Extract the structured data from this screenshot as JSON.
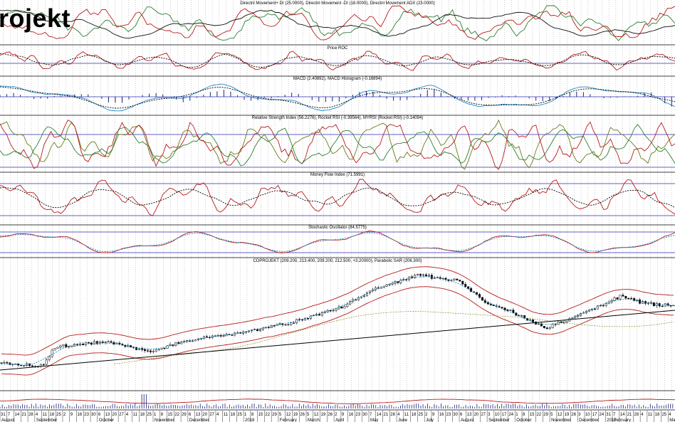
{
  "brand": {
    "text": "rojekt"
  },
  "chart_data": [
    {
      "type": "line",
      "title": "Directnl Movement+ DI (25.0000), Directnl Movement -DI (18.0000), Directnl Movement ADX (23.0000)",
      "series": [
        {
          "name": "Directnl Movement+ DI",
          "color": "#2e7d32",
          "level": 25.0
        },
        {
          "name": "Directnl Movement -DI",
          "color": "#b71c1c",
          "level": 18.0
        },
        {
          "name": "Directnl Movement ADX",
          "color": "#111111",
          "level": 23.0
        }
      ]
    },
    {
      "type": "line",
      "title": "Price ROC",
      "series": [
        {
          "color": "#b71c1c"
        },
        {
          "color": "#000000",
          "dashed": true
        }
      ]
    },
    {
      "type": "bar",
      "title": "MACD (2.40892), MACD Histogram (-0.16894)",
      "series": [
        {
          "name": "MACD",
          "color": "#1e88c8",
          "level": 2.40892
        },
        {
          "name": "MACD Histogram",
          "color": "#1a237e",
          "level": -0.16894
        }
      ]
    },
    {
      "type": "line",
      "title": "Relative Strength Index (56.2276), Rocket RSI (-0.39564), MYRSI (Rocket RSI) (-0.14094)",
      "series": [
        {
          "name": "Relative Strength Index",
          "color": "#6d7a1a",
          "level": 56.2276
        },
        {
          "name": "Rocket RSI",
          "color": "#b71c1c",
          "level": -0.39564
        },
        {
          "name": "MYRSI (Rocket RSI)",
          "color": "#2e7d32",
          "level": -0.14094
        }
      ]
    },
    {
      "type": "line",
      "title": "Money Flow Index (71.5991)",
      "series": [
        {
          "name": "Money Flow Index",
          "color": "#b71c1c",
          "level": 71.5991
        }
      ]
    },
    {
      "type": "line",
      "title": "Stochastic Oscillator (84.5775)",
      "series": [
        {
          "name": "Stochastic Oscillator",
          "color": "#b71c1c",
          "level": 84.5775
        }
      ]
    },
    {
      "type": "candlestick",
      "title": "CDPROJEKT (209.200, 213.400, 209.200, 212.500, +3.20000), Parabolic SAR (206.300)",
      "last": {
        "open": 209.2,
        "high": 213.4,
        "low": 209.2,
        "close": 212.5,
        "change": 3.2
      },
      "sar": 206.3,
      "path": [
        [
          0,
          0.07
        ],
        [
          0.06,
          0.04
        ],
        [
          0.08,
          0.22
        ],
        [
          0.15,
          0.27
        ],
        [
          0.22,
          0.18
        ],
        [
          0.29,
          0.3
        ],
        [
          0.36,
          0.36
        ],
        [
          0.43,
          0.45
        ],
        [
          0.5,
          0.58
        ],
        [
          0.56,
          0.78
        ],
        [
          0.62,
          0.9
        ],
        [
          0.68,
          0.85
        ],
        [
          0.72,
          0.64
        ],
        [
          0.76,
          0.55
        ],
        [
          0.81,
          0.4
        ],
        [
          0.86,
          0.52
        ],
        [
          0.92,
          0.7
        ],
        [
          0.96,
          0.63
        ],
        [
          1.0,
          0.61
        ]
      ],
      "colors": {
        "candle": "#000000",
        "bands": "#b71c1c",
        "ma": "#1e88c8",
        "ma_long": "#8d8d2a",
        "trend": "#000000"
      }
    },
    {
      "type": "bar",
      "title": "",
      "colors": {
        "bars": "#1a237e",
        "ma": "#b71c1c"
      }
    }
  ],
  "x_axis": {
    "day_labels": [
      "31",
      "7",
      "14",
      "21",
      "28",
      "4",
      "11",
      "18",
      "25",
      "2",
      "9",
      "16",
      "23",
      "30",
      "6",
      "13",
      "20",
      "27",
      "4",
      "11",
      "18",
      "25",
      "1",
      "8",
      "15",
      "22",
      "29",
      "6",
      "13",
      "20",
      "27",
      "4",
      "11",
      "18",
      "25",
      "1",
      "8",
      "15",
      "22",
      "29",
      "5",
      "12",
      "19",
      "26",
      "5",
      "12",
      "19",
      "26",
      "2",
      "9",
      "16",
      "23",
      "30",
      "7",
      "14",
      "21",
      "28",
      "4",
      "11",
      "18",
      "25",
      "2",
      "9",
      "16",
      "23",
      "30",
      "6",
      "13",
      "20",
      "27",
      "3",
      "10",
      "17",
      "24",
      "1",
      "8",
      "15",
      "22",
      "29",
      "5",
      "12",
      "19",
      "26",
      "3",
      "10",
      "17",
      "24",
      "31",
      "7",
      "14",
      "21",
      "28",
      "4",
      "11",
      "18",
      "25",
      "4"
    ],
    "month_labels": [
      {
        "text": "August",
        "day_index": 0
      },
      {
        "text": "September",
        "day_index": 5
      },
      {
        "text": "October",
        "day_index": 14
      },
      {
        "text": "November",
        "day_index": 22
      },
      {
        "text": "December",
        "day_index": 27
      },
      {
        "text": "2018",
        "day_index": 35
      },
      {
        "text": "February",
        "day_index": 40
      },
      {
        "text": "March",
        "day_index": 44
      },
      {
        "text": "April",
        "day_index": 48
      },
      {
        "text": "May",
        "day_index": 53
      },
      {
        "text": "June",
        "day_index": 57
      },
      {
        "text": "July",
        "day_index": 61
      },
      {
        "text": "August",
        "day_index": 66
      },
      {
        "text": "September",
        "day_index": 70
      },
      {
        "text": "October",
        "day_index": 74
      },
      {
        "text": "November",
        "day_index": 79
      },
      {
        "text": "December",
        "day_index": 83
      },
      {
        "text": "2019",
        "day_index": 87
      },
      {
        "text": "February",
        "day_index": 88
      },
      {
        "text": "March",
        "day_index": 96
      }
    ]
  }
}
